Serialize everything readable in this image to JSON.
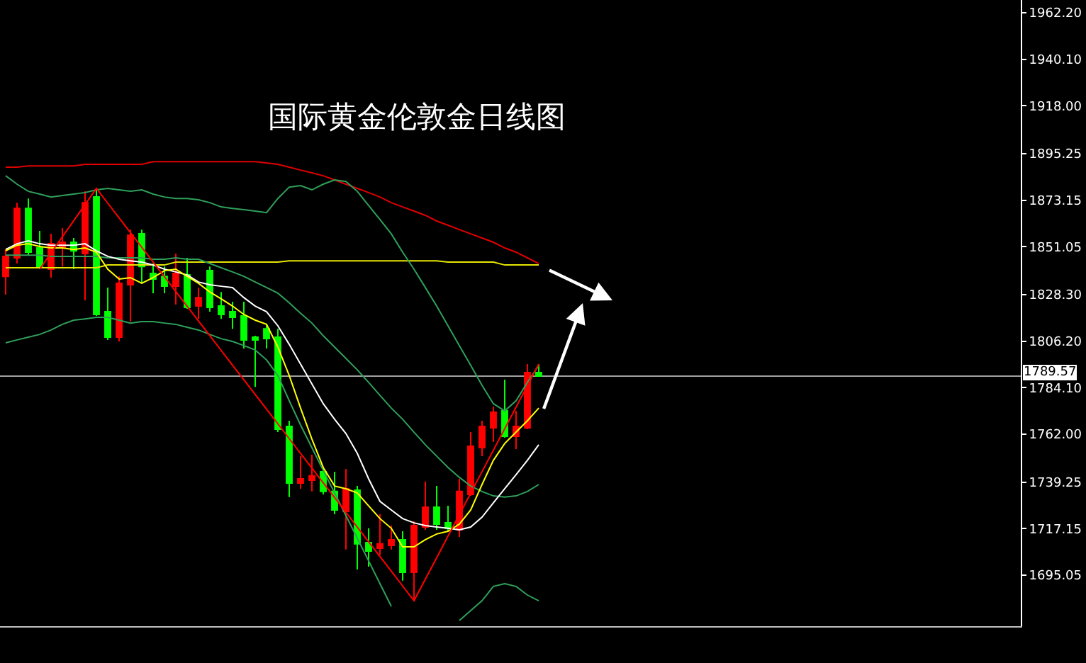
{
  "chart_data": {
    "type": "candlestick",
    "title": "国际黄金伦敦金日线图",
    "categories": [
      null,
      null,
      null,
      null,
      null,
      null,
      null,
      null,
      null,
      null,
      null,
      null,
      null,
      null,
      null,
      null,
      null,
      null,
      null,
      null,
      null,
      null,
      null,
      null,
      null,
      null,
      null,
      null,
      null,
      null,
      null,
      null,
      null,
      null,
      null,
      null,
      null,
      null,
      null,
      null,
      null,
      null,
      null,
      null,
      null,
      null,
      null,
      null,
      null,
      null,
      null,
      null,
      null,
      null,
      null,
      null,
      null,
      null,
      null,
      null,
      null,
      null,
      null,
      null,
      null,
      null,
      null,
      null,
      null,
      null,
      null,
      null,
      null,
      null,
      null,
      null,
      null,
      null,
      null,
      null,
      null,
      null,
      null,
      null,
      null,
      null,
      null,
      null,
      null,
      null
    ],
    "ohlc": [
      [
        1837.0,
        1849.8,
        1828.3,
        1846.5
      ],
      [
        1845.8,
        1872.0,
        1843.1,
        1869.3
      ],
      [
        1869.3,
        1874.0,
        1847.1,
        1848.5
      ],
      [
        1850.5,
        1858.6,
        1840.4,
        1841.7
      ],
      [
        1840.4,
        1857.2,
        1836.4,
        1852.5
      ],
      [
        1850.5,
        1859.9,
        1841.7,
        1853.2
      ],
      [
        1853.2,
        1855.2,
        1840.4,
        1849.1
      ],
      [
        1847.8,
        1877.4,
        1825.6,
        1872.0
      ],
      [
        1874.7,
        1878.8,
        1818.2,
        1818.9
      ],
      [
        1820.2,
        1831.7,
        1806.8,
        1808.1
      ],
      [
        1808.1,
        1837.0,
        1806.1,
        1833.7
      ],
      [
        1833.0,
        1859.2,
        1815.5,
        1856.6
      ],
      [
        1857.2,
        1859.2,
        1833.7,
        1841.7
      ],
      [
        1838.4,
        1843.1,
        1829.0,
        1835.7
      ],
      [
        1837.0,
        1841.7,
        1829.0,
        1832.3
      ],
      [
        1832.3,
        1847.8,
        1823.6,
        1838.4
      ],
      [
        1837.7,
        1845.8,
        1821.6,
        1822.2
      ],
      [
        1822.9,
        1831.7,
        1816.8,
        1826.9
      ],
      [
        1839.7,
        1841.7,
        1820.2,
        1822.2
      ],
      [
        1822.9,
        1829.6,
        1816.8,
        1818.9
      ],
      [
        1820.2,
        1824.9,
        1812.1,
        1817.5
      ],
      [
        1818.2,
        1824.9,
        1802.7,
        1806.8
      ],
      [
        1808.1,
        1808.8,
        1784.5,
        1806.8
      ],
      [
        1812.1,
        1814.2,
        1802.7,
        1807.4
      ],
      [
        1808.1,
        1812.1,
        1763.0,
        1764.4
      ],
      [
        1765.7,
        1768.4,
        1732.1,
        1738.8
      ],
      [
        1738.8,
        1751.6,
        1736.1,
        1740.8
      ],
      [
        1740.1,
        1752.2,
        1734.8,
        1742.2
      ],
      [
        1744.2,
        1745.5,
        1733.4,
        1734.8
      ],
      [
        1734.8,
        1744.2,
        1724.0,
        1726.0
      ],
      [
        1725.3,
        1745.5,
        1707.2,
        1736.1
      ],
      [
        1735.4,
        1737.4,
        1697.7,
        1709.9
      ],
      [
        1710.5,
        1717.3,
        1699.1,
        1706.5
      ],
      [
        1707.8,
        1724.0,
        1704.5,
        1709.9
      ],
      [
        1709.2,
        1718.6,
        1707.2,
        1711.9
      ],
      [
        1711.9,
        1715.9,
        1692.4,
        1696.4
      ],
      [
        1696.4,
        1720.6,
        1682.9,
        1718.6
      ],
      [
        1717.9,
        1739.5,
        1716.6,
        1727.3
      ],
      [
        1727.3,
        1737.4,
        1716.6,
        1719.3
      ],
      [
        1719.9,
        1728.0,
        1715.9,
        1717.3
      ],
      [
        1716.6,
        1740.8,
        1713.2,
        1734.8
      ],
      [
        1733.4,
        1763.0,
        1732.7,
        1756.3
      ],
      [
        1755.6,
        1768.4,
        1751.6,
        1765.7
      ],
      [
        1765.0,
        1775.1,
        1758.3,
        1772.4
      ],
      [
        1773.1,
        1787.9,
        1760.3,
        1761.0
      ],
      [
        1761.0,
        1773.1,
        1754.9,
        1765.7
      ],
      [
        1765.0,
        1795.3,
        1764.4,
        1791.3
      ],
      [
        1791.3,
        1795.3,
        1789.3,
        1789.57
      ],
      null,
      null,
      null,
      null,
      null,
      null,
      null,
      null,
      null,
      null,
      null,
      null,
      null,
      null,
      null,
      null,
      null,
      null,
      null,
      null,
      null,
      null,
      null,
      null,
      null,
      null,
      null,
      null,
      null,
      null,
      null,
      null,
      null,
      null,
      null,
      null,
      null,
      null,
      null,
      null,
      null,
      null
    ],
    "colors": [
      "#ff0000",
      "#ff0000",
      "#00ff00",
      "#00ff00",
      "#ff0000",
      "#ff0000",
      "#00ff00",
      "#ff0000",
      "#00ff00",
      "#00ff00",
      "#ff0000",
      "#ff0000",
      "#00ff00",
      "#00ff00",
      "#00ff00",
      "#ff0000",
      "#00ff00",
      "#ff0000",
      "#00ff00",
      "#00ff00",
      "#00ff00",
      "#00ff00",
      "#00ff00",
      "#00ff00",
      "#00ff00",
      "#00ff00",
      "#ff0000",
      "#ff0000",
      "#00ff00",
      "#00ff00",
      "#ff0000",
      "#00ff00",
      "#00ff00",
      "#ff0000",
      "#ff0000",
      "#00ff00",
      "#ff0000",
      "#ff0000",
      "#00ff00",
      "#00ff00",
      "#ff0000",
      "#ff0000",
      "#ff0000",
      "#ff0000",
      "#00ff00",
      "#ff0000",
      "#ff0000",
      "#00ff00",
      null,
      null,
      null,
      null,
      null,
      null,
      null,
      null,
      null,
      null,
      null,
      null,
      null,
      null,
      null,
      null,
      null,
      null,
      null,
      null,
      null,
      null,
      null,
      null,
      null,
      null,
      null,
      null,
      null,
      null,
      null,
      null,
      null,
      null,
      null,
      null,
      null,
      null,
      null,
      null,
      null,
      null
    ],
    "series": [
      {
        "type": "line",
        "color": "#e00000",
        "values": [
          1888.9,
          1888.9,
          1889.5,
          1889.5,
          1889.5,
          1889.5,
          1889.5,
          1890.2,
          1890.2,
          1890.2,
          1890.2,
          1890.2,
          1890.2,
          1891.5,
          1891.5,
          1891.5,
          1891.5,
          1891.5,
          1891.5,
          1891.5,
          1891.5,
          1891.5,
          1891.5,
          1890.9,
          1890.2,
          1888.9,
          1887.5,
          1886.2,
          1884.8,
          1882.8,
          1880.8,
          1878.8,
          1876.8,
          1874.7,
          1872.0,
          1870.0,
          1868.0,
          1866.0,
          1863.3,
          1861.3,
          1859.2,
          1857.2,
          1855.2,
          1853.2,
          1850.5,
          1848.5,
          1845.8,
          1843.1,
          null,
          null,
          null,
          null,
          null,
          null,
          null,
          null,
          null,
          null,
          null,
          null,
          null,
          null,
          null,
          null,
          null,
          null,
          null,
          null,
          null,
          null,
          null,
          null,
          null,
          null,
          null,
          null,
          null,
          null,
          null,
          null,
          null,
          null,
          null,
          null,
          null,
          null,
          null,
          null,
          null,
          null
        ]
      },
      {
        "type": "line",
        "color": "#e6e600",
        "values": [
          1841.1,
          1841.1,
          1841.1,
          1841.1,
          1841.1,
          1841.1,
          1841.1,
          1841.1,
          1841.1,
          1842.4,
          1842.4,
          1842.4,
          1842.4,
          1842.4,
          1842.4,
          1843.8,
          1843.8,
          1843.8,
          1843.8,
          1843.8,
          1843.8,
          1843.8,
          1843.8,
          1843.8,
          1843.8,
          1844.4,
          1844.4,
          1844.4,
          1844.4,
          1844.4,
          1844.4,
          1844.4,
          1844.4,
          1844.4,
          1844.4,
          1844.4,
          1844.4,
          1844.4,
          1844.4,
          1843.8,
          1843.8,
          1843.8,
          1843.8,
          1843.8,
          1842.4,
          1842.4,
          1842.4,
          1842.4,
          null,
          null,
          null,
          null,
          null,
          null,
          null,
          null,
          null,
          null,
          null,
          null,
          null,
          null,
          null,
          null,
          null,
          null,
          null,
          null,
          null,
          null,
          null,
          null,
          null,
          null,
          null,
          null,
          null,
          null,
          null,
          null,
          null,
          null,
          null,
          null,
          null,
          null,
          null,
          null,
          null,
          null
        ]
      },
      {
        "type": "line",
        "color": "#2fa05a",
        "values": [
          1884.8,
          1880.8,
          1877.4,
          1876.1,
          1874.7,
          1875.4,
          1876.1,
          1876.8,
          1878.1,
          1878.8,
          1878.1,
          1877.4,
          1878.1,
          1876.1,
          1874.7,
          1874.0,
          1874.0,
          1873.4,
          1872.0,
          1870.0,
          1869.3,
          1868.7,
          1868.0,
          1867.3,
          1874.0,
          1879.4,
          1880.1,
          1878.1,
          1880.8,
          1882.8,
          1882.1,
          1877.4,
          1870.7,
          1864.0,
          1857.2,
          1848.5,
          1840.4,
          1831.7,
          1822.9,
          1813.5,
          1804.1,
          1794.7,
          1785.2,
          1776.5,
          1773.1,
          1777.9,
          1786.6,
          1794.7,
          null,
          null,
          null,
          null,
          null,
          null,
          null,
          null,
          null,
          null,
          null,
          null,
          null,
          null,
          null,
          null,
          null,
          null,
          null,
          null,
          null,
          null,
          null,
          null,
          null,
          null,
          null,
          null,
          null,
          null,
          null,
          null,
          null,
          null,
          null,
          null,
          null,
          null,
          null,
          null,
          null,
          null
        ]
      },
      {
        "type": "line",
        "color": "#2fa05a",
        "values": [
          1847.1,
          1847.1,
          1847.1,
          1847.1,
          1846.5,
          1846.5,
          1846.5,
          1846.5,
          1846.5,
          1845.8,
          1845.8,
          1845.8,
          1845.8,
          1845.1,
          1845.1,
          1845.8,
          1845.1,
          1845.1,
          1843.1,
          1841.1,
          1839.1,
          1837.0,
          1834.3,
          1831.7,
          1829.0,
          1824.4,
          1819.5,
          1814.8,
          1808.8,
          1803.4,
          1798.0,
          1792.6,
          1786.6,
          1780.5,
          1774.4,
          1769.1,
          1763.0,
          1757.0,
          1751.6,
          1746.2,
          1741.5,
          1737.4,
          1734.8,
          1732.7,
          1732.1,
          1732.7,
          1734.8,
          1738.1,
          null,
          null,
          null,
          null,
          null,
          null,
          null,
          null,
          null,
          null,
          null,
          null,
          null,
          null,
          null,
          null,
          null,
          null,
          null,
          null,
          null,
          null,
          null,
          null,
          null,
          null,
          null,
          null,
          null,
          null,
          null,
          null,
          null,
          null,
          null,
          null,
          null,
          null,
          null,
          null,
          null,
          null
        ]
      },
      {
        "type": "line",
        "color": "#2fa05a",
        "values": [
          1805.4,
          1806.8,
          1808.1,
          1809.4,
          1811.5,
          1814.2,
          1816.2,
          1816.8,
          1817.5,
          1817.5,
          1816.2,
          1814.8,
          1815.5,
          1815.5,
          1814.8,
          1814.2,
          1812.8,
          1811.5,
          1809.4,
          1807.4,
          1806.1,
          1804.1,
          1802.0,
          1797.3,
          1789.9,
          1777.9,
          1766.4,
          1755.6,
          1744.8,
          1734.1,
          1723.3,
          1712.6,
          1701.8,
          1691.0,
          1680.2,
          null,
          null,
          null,
          null,
          null,
          1673.5,
          1678.2,
          1682.9,
          1689.7,
          1691.0,
          1689.7,
          1685.6,
          1682.9,
          null,
          null,
          null,
          null,
          null,
          null,
          null,
          null,
          null,
          null,
          null,
          null,
          null,
          null,
          null,
          null,
          null,
          null,
          null,
          null,
          null,
          null,
          null,
          null,
          null,
          null,
          null,
          null,
          null,
          null,
          null,
          null,
          null,
          null,
          null,
          null,
          null,
          null,
          null,
          null,
          null,
          null
        ]
      },
      {
        "type": "line",
        "color": "#ffffff",
        "values": [
          1849.8,
          1852.5,
          1853.9,
          1852.5,
          1851.8,
          1851.8,
          1851.8,
          1852.5,
          1849.1,
          1846.5,
          1845.1,
          1844.4,
          1843.8,
          1842.4,
          1840.4,
          1839.1,
          1837.7,
          1834.3,
          1833.0,
          1832.3,
          1831.7,
          1826.9,
          1822.9,
          1820.2,
          1813.5,
          1804.7,
          1795.3,
          1785.9,
          1776.5,
          1769.1,
          1762.3,
          1752.9,
          1740.8,
          1730.1,
          1726.0,
          1721.9,
          1719.9,
          1718.6,
          1717.9,
          1717.3,
          1716.6,
          1717.9,
          1722.6,
          1729.4,
          1736.1,
          1742.8,
          1749.6,
          1757.0,
          null,
          null,
          null,
          null,
          null,
          null,
          null,
          null,
          null,
          null,
          null,
          null,
          null,
          null,
          null,
          null,
          null,
          null,
          null,
          null,
          null,
          null,
          null,
          null,
          null,
          null,
          null,
          null,
          null,
          null,
          null,
          null,
          null,
          null,
          null,
          null,
          null,
          null,
          null,
          null,
          null,
          null
        ]
      },
      {
        "type": "line",
        "color": "#ffff00",
        "values": [
          1849.1,
          1851.8,
          1852.5,
          1851.2,
          1850.5,
          1850.5,
          1849.8,
          1850.5,
          1848.5,
          1840.4,
          1835.7,
          1836.4,
          1833.7,
          1836.4,
          1839.7,
          1840.4,
          1837.0,
          1833.7,
          1829.6,
          1826.3,
          1822.9,
          1818.9,
          1816.2,
          1814.2,
          1803.4,
          1789.9,
          1774.4,
          1759.7,
          1746.2,
          1737.4,
          1736.1,
          1734.1,
          1728.0,
          1721.9,
          1717.3,
          1708.5,
          1708.5,
          1711.9,
          1714.6,
          1715.9,
          1719.3,
          1726.0,
          1738.1,
          1749.6,
          1757.6,
          1763.0,
          1768.4,
          1774.4,
          null,
          null,
          null,
          null,
          null,
          null,
          null,
          null,
          null,
          null,
          null,
          null,
          null,
          null,
          null,
          null,
          null,
          null,
          null,
          null,
          null,
          null,
          null,
          null,
          null,
          null,
          null,
          null,
          null,
          null,
          null,
          null,
          null,
          null,
          null,
          null,
          null,
          null,
          null,
          null,
          null,
          null
        ]
      },
      {
        "type": "line",
        "color": "#ff0000",
        "values": [
          null,
          null,
          null,
          1840.4,
          1848.1,
          1855.8,
          1863.4,
          1871.1,
          1878.8,
          1871.8,
          1864.8,
          1857.8,
          1850.8,
          1843.8,
          1836.8,
          1829.8,
          1822.8,
          1815.8,
          1808.8,
          1801.8,
          1794.8,
          1787.9,
          1780.9,
          1773.9,
          1766.9,
          1759.9,
          1752.9,
          1745.9,
          1738.9,
          1731.9,
          1724.9,
          1717.9,
          1710.9,
          1703.9,
          1696.9,
          1689.9,
          1682.9,
          1693.1,
          1703.3,
          1713.6,
          1723.8,
          1734.0,
          1744.2,
          1754.4,
          1764.6,
          1774.9,
          1785.1,
          1795.3,
          null,
          null,
          null,
          null,
          null,
          null,
          null,
          null,
          null,
          null,
          null,
          null,
          null,
          null,
          null,
          null,
          null,
          null,
          null,
          null,
          null,
          null,
          null,
          null,
          null,
          null,
          null,
          null,
          null,
          null,
          null,
          null,
          null,
          null,
          null,
          null,
          null,
          null,
          null,
          null,
          null,
          null
        ]
      }
    ],
    "ylim": [
      1670.8,
      1968.3
    ],
    "yticks": [
      {
        "value": 1962.2,
        "label": "1962.20"
      },
      {
        "value": 1940.1,
        "label": "1940.10"
      },
      {
        "value": 1918,
        "label": "1918.00"
      },
      1895.25,
      1873.15,
      1851.05,
      {
        "value": 1828.3,
        "label": "1828.30"
      },
      {
        "value": 1806.2,
        "label": "1806.20"
      },
      {
        "value": 1784.1,
        "label": "1784.10"
      },
      {
        "value": 1762,
        "label": "1762.00"
      },
      1739.25,
      1717.15,
      1695.05
    ],
    "ref_lines": [
      {
        "axis": "y",
        "value": 1789.57,
        "label": "1789.57",
        "color": "#a0a0a0"
      }
    ],
    "tick_labels": "y",
    "grid": false
  }
}
